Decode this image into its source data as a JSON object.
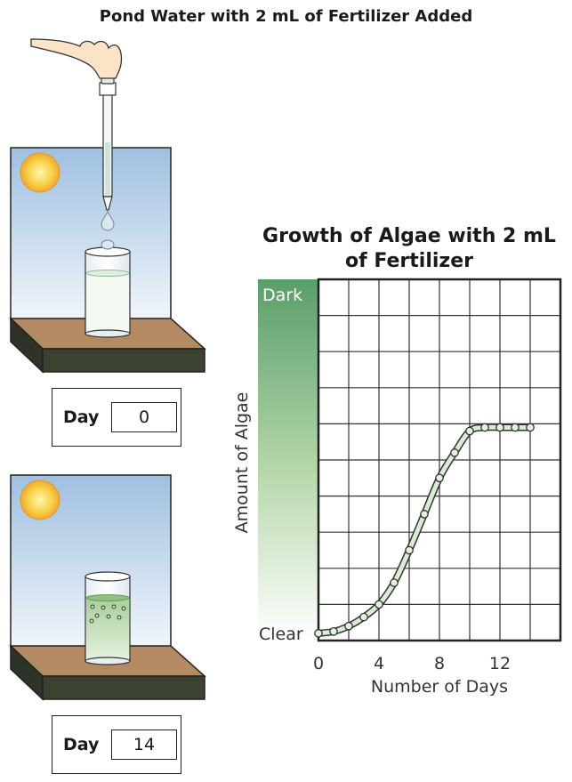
{
  "title": "Pond Water with 2 mL of Fertilizer Added",
  "panels": [
    {
      "day_label": "Day",
      "day_value": "0"
    },
    {
      "day_label": "Day",
      "day_value": "14"
    }
  ],
  "chart_data": {
    "type": "line",
    "title": "Growth of Algae with 2 mL of Fertilizer",
    "xlabel": "Number of Days",
    "ylabel": "Amount of Algae",
    "y_top_label": "Dark",
    "y_bottom_label": "Clear",
    "x_ticks": [
      0,
      4,
      8,
      12
    ],
    "xlim": [
      0,
      16
    ],
    "ylim": [
      0,
      10
    ],
    "grid": true,
    "x": [
      0,
      1,
      2,
      3,
      4,
      5,
      6,
      7,
      8,
      9,
      10,
      11,
      12,
      13,
      14
    ],
    "values": [
      0.2,
      0.25,
      0.4,
      0.65,
      1.0,
      1.6,
      2.5,
      3.5,
      4.5,
      5.2,
      5.8,
      5.9,
      5.9,
      5.9,
      5.9
    ]
  },
  "colors": {
    "sky_top": "#9fc0e0",
    "sky_bottom": "#f2f6fb",
    "table_top": "#b48a62",
    "table_side": "#3b4232",
    "algae_dark": "#5a9e6a",
    "curve": "#d9ecd4"
  }
}
